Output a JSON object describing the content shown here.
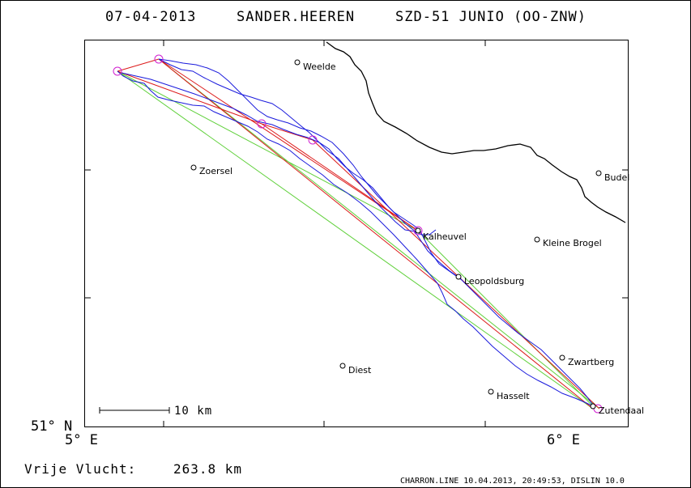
{
  "header": {
    "date": "07-04-2013",
    "pilot": "SANDER.HEEREN",
    "aircraft": "SZD-51 JUNIO (OO-ZNW)"
  },
  "axes": {
    "lat_label": "51° N",
    "lon_left": "5° E",
    "lon_right": "6° E"
  },
  "scale_bar": {
    "label": "10 km"
  },
  "towns": [
    {
      "name": "Weelde"
    },
    {
      "name": "Zoersel"
    },
    {
      "name": "Budel"
    },
    {
      "name": "Kleine Brogel"
    },
    {
      "name": "Kalheuvel"
    },
    {
      "name": "Leopoldsburg"
    },
    {
      "name": "Diest"
    },
    {
      "name": "Zwartberg"
    },
    {
      "name": "Hasselt"
    },
    {
      "name": "Zutendaal"
    }
  ],
  "footer": {
    "distance_label": "Vrije Vlucht:",
    "distance_value": "263.8 km",
    "credits": "CHARRON.LINE 10.04.2013, 20:49:53, DISLIN 10.0"
  },
  "colors": {
    "track": "#1a1adc",
    "task_line": "#dc1a1a",
    "optimized_line": "#5fd03a",
    "turnpoint": "#d020d0",
    "border": "#000000"
  }
}
